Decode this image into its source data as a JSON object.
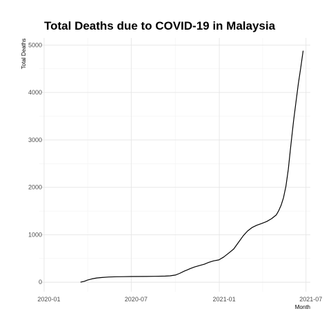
{
  "chart_data": {
    "type": "line",
    "title": "Total Deaths due to COVID-19 in Malaysia",
    "xlabel": "Month",
    "ylabel": "Total Deaths",
    "x_ticks": [
      {
        "date": "2020-01-01",
        "label": "2020-01"
      },
      {
        "date": "2020-07-01",
        "label": "2020-07"
      },
      {
        "date": "2021-01-01",
        "label": "2021-01"
      },
      {
        "date": "2021-07-01",
        "label": "2021-07"
      }
    ],
    "y_ticks": [
      0,
      1000,
      2000,
      3000,
      4000,
      5000
    ],
    "xlim": [
      "2019-12-22",
      "2021-07-10"
    ],
    "ylim": [
      -200,
      5150
    ],
    "grid": true,
    "legend": "none",
    "series": [
      {
        "points": [
          [
            "2020-03-17",
            0
          ],
          [
            "2020-03-25",
            20
          ],
          [
            "2020-04-01",
            45
          ],
          [
            "2020-04-10",
            70
          ],
          [
            "2020-04-20",
            90
          ],
          [
            "2020-05-01",
            100
          ],
          [
            "2020-05-15",
            110
          ],
          [
            "2020-06-01",
            115
          ],
          [
            "2020-06-15",
            117
          ],
          [
            "2020-07-01",
            120
          ],
          [
            "2020-08-01",
            122
          ],
          [
            "2020-08-20",
            124
          ],
          [
            "2020-09-10",
            128
          ],
          [
            "2020-09-20",
            134
          ],
          [
            "2020-10-01",
            150
          ],
          [
            "2020-10-10",
            185
          ],
          [
            "2020-10-20",
            235
          ],
          [
            "2020-10-25",
            255
          ],
          [
            "2020-11-01",
            285
          ],
          [
            "2020-11-10",
            320
          ],
          [
            "2020-11-20",
            350
          ],
          [
            "2020-12-01",
            380
          ],
          [
            "2020-12-10",
            420
          ],
          [
            "2020-12-20",
            450
          ],
          [
            "2020-12-31",
            470
          ],
          [
            "2021-01-10",
            530
          ],
          [
            "2021-01-20",
            610
          ],
          [
            "2021-01-31",
            700
          ],
          [
            "2021-02-10",
            840
          ],
          [
            "2021-02-20",
            980
          ],
          [
            "2021-03-01",
            1080
          ],
          [
            "2021-03-10",
            1150
          ],
          [
            "2021-03-20",
            1200
          ],
          [
            "2021-03-31",
            1240
          ],
          [
            "2021-04-10",
            1280
          ],
          [
            "2021-04-20",
            1340
          ],
          [
            "2021-04-30",
            1420
          ],
          [
            "2021-05-05",
            1510
          ],
          [
            "2021-05-10",
            1620
          ],
          [
            "2021-05-15",
            1780
          ],
          [
            "2021-05-20",
            2020
          ],
          [
            "2021-05-25",
            2380
          ],
          [
            "2021-05-30",
            2850
          ],
          [
            "2021-06-05",
            3400
          ],
          [
            "2021-06-10",
            3800
          ],
          [
            "2021-06-15",
            4180
          ],
          [
            "2021-06-20",
            4520
          ],
          [
            "2021-06-25",
            4880
          ]
        ]
      }
    ]
  }
}
